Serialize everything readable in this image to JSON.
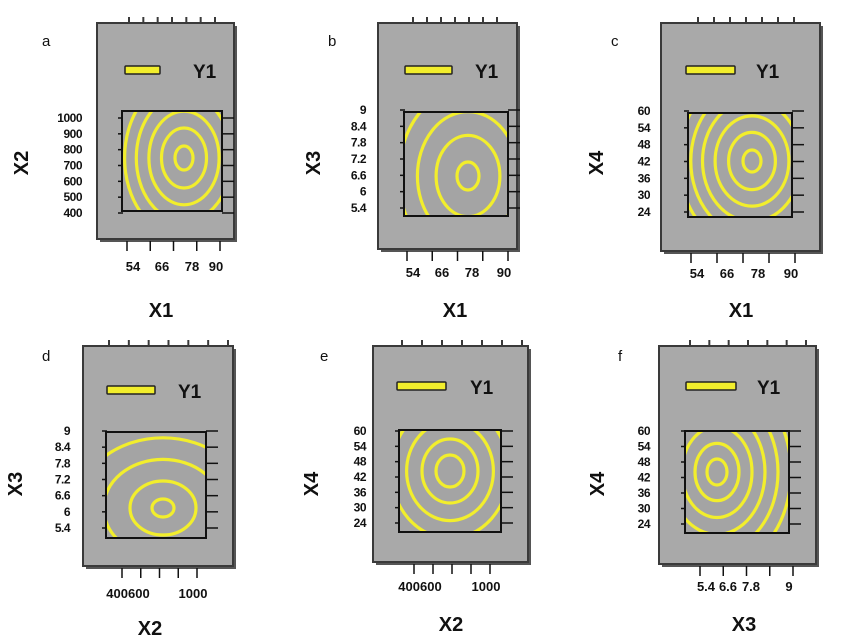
{
  "figure": {
    "colors": {
      "panel_bg": "#a9a9a9",
      "panel_border": "#3a3a3a",
      "plot_bg": "#a4a4a4",
      "contour": "#f2ee2c",
      "legend_line": "#f2ee2c",
      "text": "#111111"
    }
  },
  "chart_data": [
    {
      "panel": "a",
      "type": "contour",
      "legend": [
        "Y1"
      ],
      "xlabel": "X1",
      "ylabel": "X2",
      "x_ticks": [
        "54",
        "66",
        "78",
        "90"
      ],
      "y_ticks": [
        "1000",
        "900",
        "800",
        "700",
        "600",
        "500",
        "400"
      ],
      "xlim": [
        48,
        96
      ],
      "ylim": [
        360,
        1070
      ],
      "optimum": {
        "x": 80,
        "y": 720
      },
      "grid": false
    },
    {
      "panel": "b",
      "type": "contour",
      "legend": [
        "Y1"
      ],
      "xlabel": "X1",
      "ylabel": "X3",
      "x_ticks": [
        "54",
        "66",
        "78",
        "90"
      ],
      "y_ticks": [
        "9",
        "8.4",
        "7.8",
        "7.2",
        "6.6",
        "6",
        "5.4"
      ],
      "xlim": [
        48,
        96
      ],
      "ylim": [
        5.1,
        9.1
      ],
      "optimum": {
        "x": 78,
        "y": 6.3
      },
      "grid": false
    },
    {
      "panel": "c",
      "type": "contour",
      "legend": [
        "Y1"
      ],
      "xlabel": "X1",
      "ylabel": "X4",
      "x_ticks": [
        "54",
        "66",
        "78",
        "90"
      ],
      "y_ticks": [
        "60",
        "54",
        "48",
        "42",
        "36",
        "30",
        "24"
      ],
      "xlim": [
        48,
        96
      ],
      "ylim": [
        21,
        61
      ],
      "optimum": {
        "x": 80,
        "y": 42
      },
      "grid": false
    },
    {
      "panel": "d",
      "type": "contour",
      "legend": [
        "Y1"
      ],
      "xlabel": "X2",
      "ylabel": "X3",
      "x_ticks": [
        "400600",
        "1000"
      ],
      "y_ticks": [
        "9",
        "8.4",
        "7.8",
        "7.2",
        "6.6",
        "6",
        "5.4"
      ],
      "xlim": [
        300,
        1100
      ],
      "ylim": [
        5.1,
        9.1
      ],
      "optimum": {
        "x": 760,
        "y": 6.0
      },
      "grid": false
    },
    {
      "panel": "e",
      "type": "contour",
      "legend": [
        "Y1"
      ],
      "xlabel": "X2",
      "ylabel": "X4",
      "x_ticks": [
        "400600",
        "1000"
      ],
      "y_ticks": [
        "60",
        "54",
        "48",
        "42",
        "36",
        "30",
        "24"
      ],
      "xlim": [
        300,
        1100
      ],
      "ylim": [
        21,
        61
      ],
      "optimum": {
        "x": 700,
        "y": 42
      },
      "grid": false
    },
    {
      "panel": "f",
      "type": "contour",
      "legend": [
        "Y1"
      ],
      "xlabel": "X3",
      "ylabel": "X4",
      "x_ticks": [
        "5.4",
        "6.6",
        "7.8",
        "9"
      ],
      "y_ticks": [
        "60",
        "54",
        "48",
        "42",
        "36",
        "30",
        "24"
      ],
      "xlim": [
        5.0,
        9.4
      ],
      "ylim": [
        21,
        61
      ],
      "optimum": {
        "x": 6.2,
        "y": 42
      },
      "grid": false
    }
  ]
}
